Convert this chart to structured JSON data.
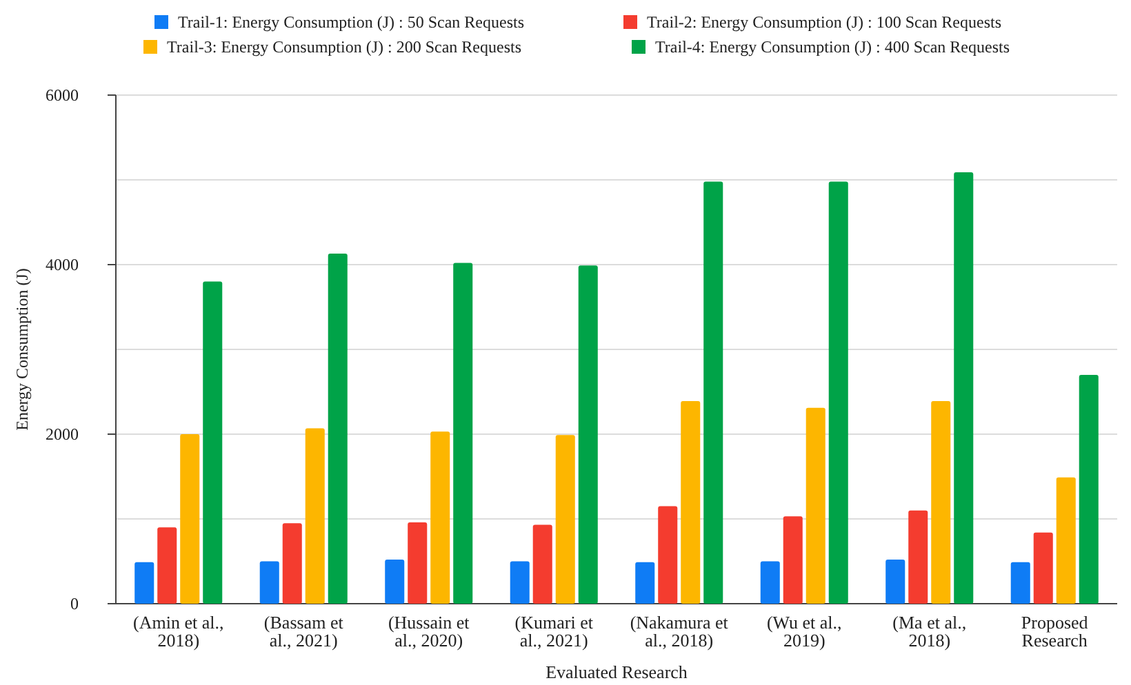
{
  "chart_data": {
    "type": "bar",
    "xlabel": "Evaluated Research",
    "ylabel": "Energy Consumption (J)",
    "categories": [
      "(Amin et al., 2018)",
      "(Bassam et al., 2021)",
      "(Hussain et al., 2020)",
      "(Kumari et al., 2021)",
      "(Nakamura et al., 2018)",
      "(Wu et al., 2019)",
      "(Ma et al., 2018)",
      "Proposed Research"
    ],
    "series": [
      {
        "name": "Trail-1: Energy Consumption (J) : 50 Scan Requests",
        "color": "#0f7cf5",
        "values": [
          490,
          500,
          520,
          500,
          490,
          500,
          520,
          490
        ]
      },
      {
        "name": "Trail-2: Energy Consumption (J) : 100 Scan Requests",
        "color": "#f43c2f",
        "values": [
          900,
          950,
          960,
          930,
          1150,
          1030,
          1100,
          840
        ]
      },
      {
        "name": "Trail-3: Energy Consumption (J) : 200 Scan Requests",
        "color": "#fdb600",
        "values": [
          2000,
          2070,
          2030,
          1990,
          2390,
          2310,
          2390,
          1490
        ]
      },
      {
        "name": "Trail-4: Energy Consumption (J) : 400 Scan Requests",
        "color": "#00a348",
        "values": [
          3800,
          4130,
          4020,
          3990,
          4980,
          4980,
          5090,
          2700
        ]
      }
    ],
    "ylim": [
      0,
      6000
    ],
    "yticks": [
      0,
      {
        "value": 1000,
        "label": null
      },
      2000,
      {
        "value": 3000,
        "label": null
      },
      4000,
      {
        "value": 5000,
        "label": null
      },
      6000
    ],
    "grid": "y",
    "legend": "top"
  }
}
